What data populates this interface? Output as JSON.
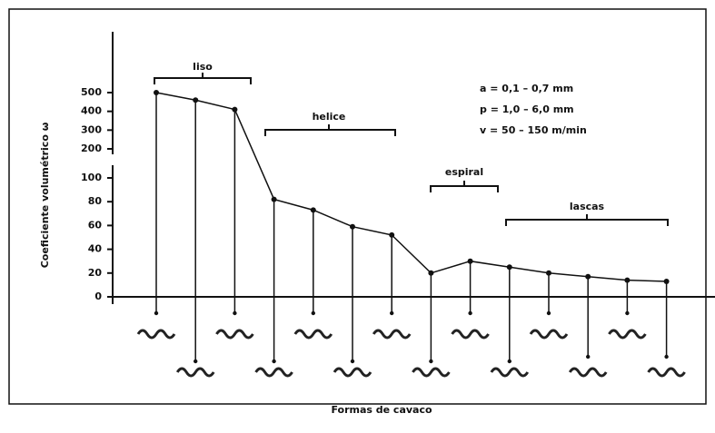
{
  "chart_data": {
    "type": "line",
    "x_label": "Formas de cavaco",
    "y_label": "Coeficiente volumétrico ω",
    "categories": [
      null,
      null,
      null,
      null,
      null,
      null,
      null,
      null,
      null,
      null,
      null,
      null,
      null,
      null
    ],
    "values": [
      500,
      460,
      410,
      82,
      73,
      59,
      52,
      20,
      30,
      25,
      20,
      17,
      14,
      13
    ],
    "color": "#111111",
    "y_segments": [
      {
        "ylim": [
          0,
          100
        ],
        "yticks": [
          0,
          20,
          40,
          60,
          80,
          100
        ]
      },
      {
        "ylim": [
          200,
          500
        ],
        "yticks": [
          200,
          300,
          400,
          500
        ]
      }
    ],
    "annotations": [
      "liso",
      "helice",
      "espiral",
      "lascas"
    ],
    "parameters": [
      "a = 0,1 – 0,7 mm",
      "p = 1,0 – 6,0 mm",
      "v = 50 – 150 m/min"
    ]
  }
}
